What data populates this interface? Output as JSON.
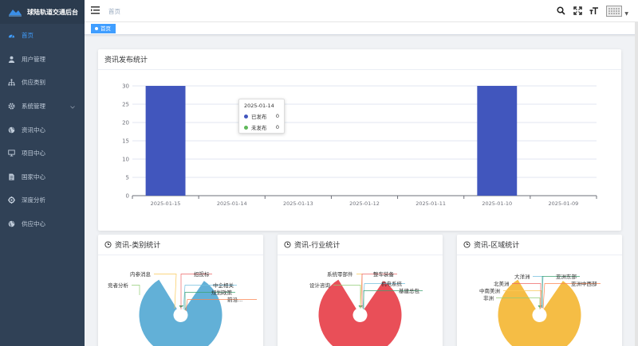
{
  "app": {
    "title": "球陆轨道交通后台"
  },
  "sidebar": {
    "items": [
      {
        "label": "首页",
        "icon": "dashboard-icon",
        "active": true
      },
      {
        "label": "用户管理",
        "icon": "user-icon"
      },
      {
        "label": "供应类别",
        "icon": "tree-icon"
      },
      {
        "label": "系统管理",
        "icon": "gear-icon",
        "has_arrow": true
      },
      {
        "label": "资讯中心",
        "icon": "globe-icon"
      },
      {
        "label": "项目中心",
        "icon": "monitor-icon"
      },
      {
        "label": "国家中心",
        "icon": "document-icon"
      },
      {
        "label": "深度分析",
        "icon": "settings-cog-icon"
      },
      {
        "label": "供应中心",
        "icon": "globe-icon"
      }
    ]
  },
  "navbar": {
    "breadcrumb": "首页"
  },
  "tags": {
    "active": "首页"
  },
  "bar_card": {
    "title": "资讯发布统计"
  },
  "tooltip": {
    "date": "2025-01-14",
    "rows": [
      {
        "label": "已发布",
        "value": "0",
        "color": "#4156bd"
      },
      {
        "label": "未发布",
        "value": "0",
        "color": "#5fb85a"
      }
    ]
  },
  "pie_cards": [
    {
      "title": "资讯-类别统计"
    },
    {
      "title": "资讯-行业统计"
    },
    {
      "title": "资讯-区域统计"
    }
  ],
  "chart_data": [
    {
      "type": "bar",
      "title": "资讯发布统计",
      "categories": [
        "2025-01-15",
        "2025-01-14",
        "2025-01-13",
        "2025-01-12",
        "2025-01-11",
        "2025-01-10",
        "2025-01-09"
      ],
      "series": [
        {
          "name": "已发布",
          "values": [
            30,
            0,
            0,
            0,
            0,
            30,
            0
          ],
          "color": "#4156bd"
        },
        {
          "name": "未发布",
          "values": [
            0,
            0,
            0,
            0,
            0,
            0,
            0
          ],
          "color": "#5fb85a"
        }
      ],
      "yticks": [
        0,
        5,
        10,
        15,
        20,
        25,
        30
      ],
      "ylim": [
        0,
        30
      ]
    },
    {
      "type": "pie",
      "title": "资讯-类别统计",
      "color": "#62b0d7",
      "labels": [
        "竞者分析",
        "内参消息",
        "招投标",
        "中企相关",
        "规划政策",
        "前沿..."
      ]
    },
    {
      "type": "pie",
      "title": "资讯-行业统计",
      "color": "#e94f58",
      "labels": [
        "设计咨询",
        "系统零部件",
        "整车装备",
        "机电系统",
        "基建总包"
      ]
    },
    {
      "type": "pie",
      "title": "资讯-区域统计",
      "color": "#f5bd45",
      "labels": [
        "非洲",
        "中南美洲",
        "北美洲",
        "大洋洲",
        "亚洲东部",
        "亚洲中西部"
      ]
    }
  ]
}
